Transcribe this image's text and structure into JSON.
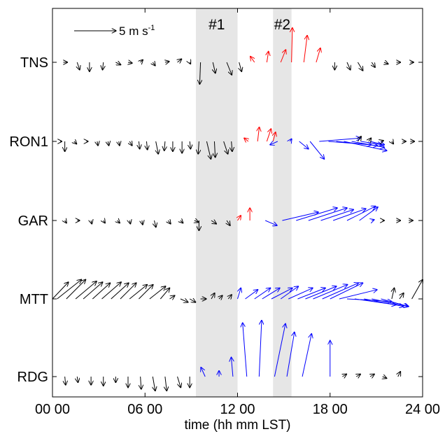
{
  "chart_data": {
    "type": "vector",
    "xlabel": "time (hh mm LST)",
    "xlim": [
      0,
      24
    ],
    "x_ticks": [
      {
        "value": 0,
        "label": "00 00"
      },
      {
        "value": 6,
        "label": "06 00"
      },
      {
        "value": 12,
        "label": "12 00"
      },
      {
        "value": 18,
        "label": "18 00"
      },
      {
        "value": 24,
        "label": "24 00"
      }
    ],
    "stations": [
      "TNS",
      "RON1",
      "GAR",
      "MTT",
      "RDG"
    ],
    "shaded_periods": [
      {
        "label": "#1",
        "start": 9.3,
        "end": 12.0
      },
      {
        "label": "#2",
        "start": 14.3,
        "end": 15.5
      }
    ],
    "scale_arrow": {
      "value": 5,
      "unit_base": "m s",
      "unit_exp": "-1"
    },
    "colors": {
      "default": "#000000",
      "red": "#ff0000",
      "blue": "#0000ff",
      "shade": "#e6e6e6"
    },
    "series": [
      {
        "station": "TNS",
        "vectors": [
          [
            0.7,
            0.5,
            0,
            "k"
          ],
          [
            1.6,
            0.3,
            -0.9,
            "k"
          ],
          [
            2.4,
            0,
            -1.1,
            "k"
          ],
          [
            3.3,
            -0.1,
            -0.9,
            "k"
          ],
          [
            4.1,
            0.6,
            -0.3,
            "k"
          ],
          [
            4.9,
            0.5,
            -0.1,
            "k"
          ],
          [
            5.7,
            0.3,
            0.3,
            "k"
          ],
          [
            6.5,
            0.3,
            -0.4,
            "k"
          ],
          [
            7.3,
            0.5,
            0.1,
            "k"
          ],
          [
            8.1,
            0.5,
            0.4,
            "k"
          ],
          [
            8.9,
            0.1,
            -0.2,
            "k"
          ],
          [
            9.6,
            -0.1,
            -2.6,
            "k"
          ],
          [
            10.4,
            0.3,
            -1.3,
            "k"
          ],
          [
            11.3,
            0.6,
            -1.5,
            "k"
          ],
          [
            12.1,
            0.3,
            -1.1,
            "k"
          ],
          [
            13.1,
            -0.5,
            0.7,
            "r"
          ],
          [
            13.9,
            0.2,
            1.3,
            "r"
          ],
          [
            14.8,
            0.6,
            1.5,
            "r"
          ],
          [
            15.5,
            0.1,
            4.1,
            "r"
          ],
          [
            16.3,
            0.4,
            3.2,
            "r"
          ],
          [
            17.1,
            0.5,
            1.7,
            "r"
          ],
          [
            18.3,
            0,
            -0.9,
            "k"
          ],
          [
            19.1,
            0.4,
            -0.9,
            "k"
          ],
          [
            19.8,
            0.6,
            -1,
            "k"
          ],
          [
            20.7,
            0.4,
            -0.6,
            "k"
          ],
          [
            21.5,
            0.5,
            -0.2,
            "k"
          ],
          [
            22.3,
            0.5,
            0,
            "k"
          ],
          [
            23.2,
            0.4,
            0,
            "k"
          ]
        ]
      },
      {
        "station": "RON1",
        "vectors": [
          [
            0.5,
            0.2,
            0,
            "k"
          ],
          [
            0.8,
            0,
            -1.2,
            "k"
          ],
          [
            1.4,
            0.3,
            -0.3,
            "k"
          ],
          [
            2.2,
            0.2,
            0,
            "k"
          ],
          [
            2.9,
            0.1,
            -0.5,
            "k"
          ],
          [
            3.6,
            0.1,
            -0.5,
            "k"
          ],
          [
            4.3,
            0.1,
            -0.5,
            "k"
          ],
          [
            5.0,
            0.3,
            -0.5,
            "k"
          ],
          [
            5.6,
            0.1,
            -0.9,
            "k"
          ],
          [
            6.1,
            0.1,
            -1.0,
            "k"
          ],
          [
            6.7,
            0.3,
            -1.5,
            "k"
          ],
          [
            7.3,
            -0.1,
            -1.1,
            "k"
          ],
          [
            7.8,
            0,
            -1.2,
            "k"
          ],
          [
            8.4,
            0,
            -1.4,
            "k"
          ],
          [
            8.9,
            0.1,
            -0.9,
            "k"
          ],
          [
            9.5,
            -0.1,
            -1.5,
            "k"
          ],
          [
            10.0,
            0.5,
            -2.1,
            "k"
          ],
          [
            10.5,
            0.1,
            -1.9,
            "k"
          ],
          [
            11.1,
            0.5,
            -1.5,
            "k"
          ],
          [
            11.6,
            0.1,
            -1.2,
            "k"
          ],
          [
            12.7,
            -0.5,
            0.4,
            "r"
          ],
          [
            13.3,
            0.2,
            1.7,
            "r"
          ],
          [
            13.9,
            0.5,
            1.5,
            "r"
          ],
          [
            14.3,
            0.3,
            1.1,
            "r"
          ],
          [
            14.6,
            -0.9,
            -0.4,
            "b"
          ],
          [
            15.4,
            0.2,
            0.3,
            "b"
          ],
          [
            16.0,
            1.1,
            -0.9,
            "b"
          ],
          [
            16.7,
            1.7,
            -2.1,
            "b"
          ],
          [
            17.3,
            4.9,
            0.4,
            "b"
          ],
          [
            17.9,
            5.1,
            -0.4,
            "b"
          ],
          [
            18.4,
            4.9,
            -0.5,
            "b"
          ],
          [
            18.9,
            5.1,
            -1.1,
            "b"
          ],
          [
            19.4,
            3.9,
            -0.7,
            "b"
          ],
          [
            20.0,
            2.5,
            -0.4,
            "b"
          ],
          [
            20.6,
            1.7,
            -0.4,
            "b"
          ],
          [
            19.8,
            0.4,
            0.6,
            "k"
          ],
          [
            20.5,
            0.3,
            0.4,
            "k"
          ],
          [
            21.3,
            0.3,
            0.1,
            "k"
          ],
          [
            22.0,
            0.2,
            -0.3,
            "k"
          ],
          [
            22.7,
            0.4,
            0,
            "k"
          ],
          [
            23.2,
            0.5,
            0,
            "k"
          ]
        ]
      },
      {
        "station": "GAR",
        "vectors": [
          [
            0.8,
            0.2,
            -0.3,
            "k"
          ],
          [
            1.6,
            0.3,
            0,
            "k"
          ],
          [
            2.5,
            0.1,
            -0.4,
            "k"
          ],
          [
            3.3,
            0.2,
            -0.3,
            "k"
          ],
          [
            4.2,
            0.3,
            -0.3,
            "k"
          ],
          [
            5.0,
            0.1,
            -0.4,
            "k"
          ],
          [
            5.8,
            0.1,
            -0.5,
            "k"
          ],
          [
            6.6,
            0.2,
            -0.8,
            "k"
          ],
          [
            7.5,
            0.3,
            -0.4,
            "k"
          ],
          [
            8.3,
            0.3,
            -0.3,
            "k"
          ],
          [
            9.2,
            0.5,
            -0.2,
            "k"
          ],
          [
            9.5,
            0,
            -1.2,
            "k"
          ],
          [
            10.3,
            0.6,
            -0.4,
            "k"
          ],
          [
            11.3,
            0.4,
            -0.6,
            "k"
          ],
          [
            12.0,
            0.4,
            0.6,
            "r"
          ],
          [
            12.8,
            0,
            1.5,
            "r"
          ],
          [
            13.8,
            1.4,
            -0.6,
            "b"
          ],
          [
            14.9,
            4.3,
            1.0,
            "b"
          ],
          [
            15.8,
            4.9,
            1.5,
            "b"
          ],
          [
            16.6,
            4.6,
            1.5,
            "b"
          ],
          [
            17.4,
            3.9,
            1.3,
            "b"
          ],
          [
            18.2,
            3.9,
            1.4,
            "b"
          ],
          [
            19.1,
            3.4,
            1.7,
            "b"
          ],
          [
            19.9,
            2.2,
            1.6,
            "b"
          ],
          [
            20.7,
            0.3,
            0.1,
            "b"
          ],
          [
            21.4,
            0.2,
            0,
            "k"
          ],
          [
            22.3,
            0.5,
            0,
            "k"
          ],
          [
            23.1,
            0.5,
            0,
            "k"
          ]
        ]
      },
      {
        "station": "MTT",
        "vectors": [
          [
            0,
            1.9,
            2.0,
            "k"
          ],
          [
            0.3,
            2.9,
            2.3,
            "k"
          ],
          [
            0.9,
            2.3,
            2.3,
            "k"
          ],
          [
            1.5,
            2.5,
            2.1,
            "k"
          ],
          [
            2.0,
            2.3,
            2.0,
            "k"
          ],
          [
            2.6,
            2.1,
            1.9,
            "k"
          ],
          [
            3.2,
            2.3,
            2.0,
            "k"
          ],
          [
            3.8,
            2.1,
            1.9,
            "k"
          ],
          [
            4.4,
            1.9,
            1.9,
            "k"
          ],
          [
            5.0,
            2.1,
            1.7,
            "k"
          ],
          [
            5.6,
            1.7,
            1.7,
            "k"
          ],
          [
            6.3,
            1.9,
            1.5,
            "k"
          ],
          [
            7.0,
            1.1,
            1.3,
            "k"
          ],
          [
            7.6,
            0.6,
            0.4,
            "k"
          ],
          [
            8.3,
            0.9,
            -0.4,
            "k"
          ],
          [
            8.9,
            0.7,
            -0.4,
            "k"
          ],
          [
            9.6,
            0.7,
            0,
            "k"
          ],
          [
            10.3,
            0.4,
            0.7,
            "k"
          ],
          [
            10.8,
            0.4,
            0.4,
            "k"
          ],
          [
            11.4,
            0.4,
            0.5,
            "k"
          ],
          [
            12.0,
            0.4,
            1.3,
            "b"
          ],
          [
            12.5,
            1.5,
            1.1,
            "b"
          ],
          [
            13.1,
            1.9,
            1.3,
            "b"
          ],
          [
            13.6,
            2.1,
            1.3,
            "b"
          ],
          [
            14.2,
            2.5,
            1.3,
            "b"
          ],
          [
            14.8,
            2.1,
            1.5,
            "b"
          ],
          [
            15.3,
            2.9,
            1.3,
            "b"
          ],
          [
            15.9,
            3.3,
            1.3,
            "b"
          ],
          [
            16.4,
            3.7,
            1.5,
            "b"
          ],
          [
            16.9,
            4.1,
            1.7,
            "b"
          ],
          [
            17.5,
            4.3,
            1.9,
            "b"
          ],
          [
            18.0,
            3.9,
            1.9,
            "b"
          ],
          [
            18.6,
            4.5,
            1.1,
            "b"
          ],
          [
            19.1,
            5.3,
            -0.3,
            "b"
          ],
          [
            19.6,
            4.9,
            -0.7,
            "b"
          ],
          [
            20.2,
            4.7,
            -0.9,
            "b"
          ],
          [
            20.7,
            4.3,
            -0.9,
            "b"
          ],
          [
            21.3,
            3.3,
            -0.9,
            "b"
          ],
          [
            22.0,
            0.3,
            1.3,
            "k"
          ],
          [
            22.5,
            0.5,
            0.7,
            "k"
          ],
          [
            23.3,
            1.3,
            2.3,
            "k"
          ]
        ]
      },
      {
        "station": "RDG",
        "vectors": [
          [
            0.8,
            0.1,
            -1.0,
            "k"
          ],
          [
            1.6,
            0.1,
            -0.7,
            "k"
          ],
          [
            2.5,
            0,
            -1.0,
            "k"
          ],
          [
            3.3,
            0,
            -1.1,
            "k"
          ],
          [
            4.1,
            0,
            -0.7,
            "k"
          ],
          [
            4.9,
            0,
            -1.3,
            "k"
          ],
          [
            5.7,
            0.1,
            -1.5,
            "k"
          ],
          [
            6.5,
            0.3,
            -1.7,
            "k"
          ],
          [
            7.3,
            0.2,
            -1.7,
            "k"
          ],
          [
            8.1,
            0.4,
            -1.3,
            "k"
          ],
          [
            8.9,
            0,
            -1.3,
            "k"
          ],
          [
            9.9,
            -0.5,
            1.1,
            "b"
          ],
          [
            10.8,
            0,
            0.7,
            "b"
          ],
          [
            11.7,
            -0.2,
            2.3,
            "b"
          ],
          [
            12.6,
            -0.5,
            6.4,
            "b"
          ],
          [
            13.4,
            0.3,
            6.7,
            "b"
          ],
          [
            14.4,
            1.3,
            6.3,
            "b"
          ],
          [
            15.2,
            0.9,
            5.3,
            "b"
          ],
          [
            16.2,
            1.1,
            5.1,
            "b"
          ],
          [
            18.0,
            0,
            4.3,
            "b"
          ],
          [
            18.8,
            0.5,
            0.3,
            "k"
          ],
          [
            19.7,
            0.5,
            0.3,
            "k"
          ],
          [
            20.6,
            0.5,
            0.3,
            "k"
          ],
          [
            21.4,
            0.5,
            -0.2,
            "k"
          ],
          [
            22.4,
            0.3,
            0.6,
            "k"
          ]
        ]
      }
    ]
  }
}
